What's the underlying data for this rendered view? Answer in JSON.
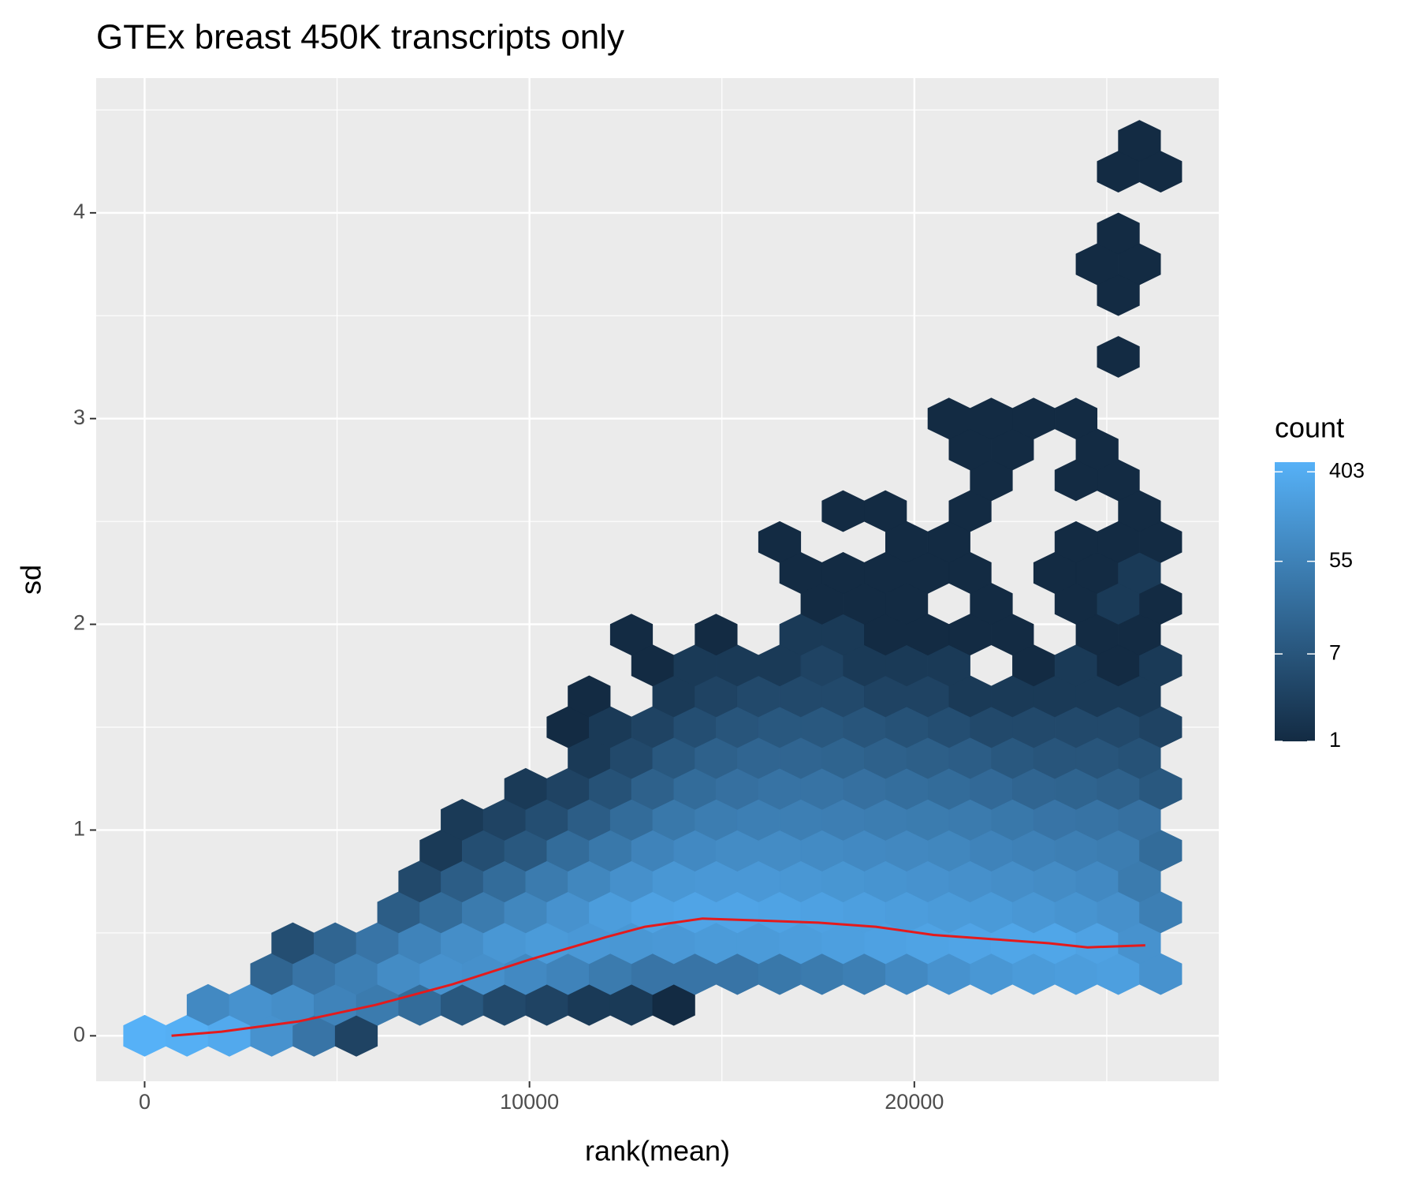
{
  "chart_data": {
    "type": "hexbin",
    "title": "GTEx breast 450K transcripts only",
    "x_label": "rank(mean)",
    "y_label": "sd",
    "xlim": [
      -1259,
      27910
    ],
    "ylim": [
      -0.221,
      4.655
    ],
    "xticks": [
      0,
      10000,
      20000
    ],
    "yticks": [
      0,
      1,
      2,
      3,
      4
    ],
    "grid": true,
    "background": "#EBEBEB",
    "legend": "right",
    "legend_title": "count",
    "legend_ticks": [
      1,
      7,
      55,
      403
    ],
    "log_color": true,
    "low_color": "#132B43",
    "high_color": "#56B1F7",
    "rows": [
      {
        "y": 0,
        "x": [
          0,
          1100,
          2200,
          3300,
          4400,
          5500
        ],
        "counts": [
          500,
          450,
          350,
          120,
          30,
          3
        ]
      },
      {
        "y": 0.15,
        "x": [
          1650,
          2750,
          3850,
          4950,
          6050,
          7150,
          8250,
          9350,
          10450,
          11550,
          12650,
          13750
        ],
        "counts": [
          80,
          120,
          100,
          60,
          40,
          20,
          8,
          4,
          3,
          2,
          2,
          1
        ]
      },
      {
        "y": 0.3,
        "x": [
          3300,
          4400,
          5500,
          6600,
          7700,
          8800,
          9900,
          11000,
          12100,
          13200,
          14300,
          15400,
          16500,
          17600,
          18700,
          19800,
          20900,
          22000,
          23100,
          24200,
          25300,
          26400
        ],
        "counts": [
          15,
          30,
          50,
          90,
          120,
          110,
          80,
          60,
          40,
          30,
          30,
          30,
          35,
          40,
          50,
          80,
          120,
          150,
          180,
          200,
          220,
          120
        ]
      },
      {
        "y": 0.45,
        "x": [
          3850,
          4950,
          6050,
          7150,
          8250,
          9350,
          10450,
          11550,
          12650,
          13750,
          14850,
          15950,
          17050,
          18150,
          19250,
          20350,
          21450,
          22550,
          23650,
          24750,
          25850
        ],
        "counts": [
          5,
          15,
          30,
          60,
          100,
          150,
          180,
          160,
          150,
          160,
          180,
          180,
          200,
          220,
          240,
          260,
          280,
          300,
          300,
          250,
          120
        ]
      },
      {
        "y": 0.6,
        "x": [
          6600,
          7700,
          8800,
          9900,
          11000,
          12100,
          13200,
          14300,
          15400,
          16500,
          17600,
          18700,
          19800,
          20900,
          22000,
          23100,
          24200,
          25300,
          26400
        ],
        "counts": [
          10,
          20,
          40,
          70,
          120,
          200,
          250,
          280,
          280,
          260,
          240,
          220,
          200,
          180,
          170,
          150,
          130,
          110,
          50
        ]
      },
      {
        "y": 0.75,
        "x": [
          7150,
          8250,
          9350,
          10450,
          11550,
          12650,
          13750,
          14850,
          15950,
          17050,
          18150,
          19250,
          20350,
          21450,
          22550,
          23650,
          24750,
          25850
        ],
        "counts": [
          4,
          10,
          20,
          40,
          70,
          110,
          150,
          160,
          160,
          150,
          140,
          130,
          120,
          110,
          100,
          90,
          80,
          40
        ]
      },
      {
        "y": 0.9,
        "x": [
          7700,
          8800,
          9900,
          11000,
          12100,
          13200,
          14300,
          15400,
          16500,
          17600,
          18700,
          19800,
          20900,
          22000,
          23100,
          24200,
          25300,
          26400
        ],
        "counts": [
          2,
          5,
          8,
          20,
          35,
          60,
          80,
          90,
          90,
          85,
          80,
          75,
          70,
          60,
          55,
          50,
          45,
          20
        ]
      },
      {
        "y": 1.05,
        "x": [
          8250,
          9350,
          10450,
          11550,
          12650,
          13750,
          14850,
          15950,
          17050,
          18150,
          19250,
          20350,
          21450,
          22550,
          23650,
          24750,
          25850
        ],
        "counts": [
          2,
          3,
          5,
          10,
          20,
          35,
          45,
          50,
          50,
          48,
          45,
          42,
          40,
          35,
          30,
          28,
          25
        ]
      },
      {
        "y": 1.2,
        "x": [
          9900,
          11000,
          12100,
          13200,
          14300,
          15400,
          16500,
          17600,
          18700,
          19800,
          20900,
          22000,
          23100,
          24200,
          25300,
          26400
        ],
        "counts": [
          2,
          3,
          6,
          12,
          20,
          25,
          28,
          28,
          25,
          22,
          20,
          18,
          15,
          14,
          12,
          8
        ]
      },
      {
        "y": 1.35,
        "x": [
          11550,
          12650,
          13750,
          14850,
          15950,
          17050,
          18150,
          19250,
          20350,
          21450,
          22550,
          23650,
          24750,
          25850
        ],
        "counts": [
          2,
          4,
          8,
          12,
          15,
          15,
          14,
          12,
          11,
          10,
          8,
          7,
          7,
          6
        ]
      },
      {
        "y": 1.5,
        "x": [
          11000,
          12100,
          13200,
          14300,
          15400,
          16500,
          17600,
          18700,
          19800,
          20900,
          22000,
          23100,
          24200,
          25300,
          26400
        ],
        "counts": [
          1,
          2,
          3,
          5,
          7,
          8,
          8,
          7,
          6,
          5,
          4,
          4,
          4,
          4,
          3
        ]
      },
      {
        "y": 1.65,
        "x": [
          11550,
          13750,
          14850,
          15950,
          17050,
          18150,
          19250,
          20350,
          21450,
          22550,
          23650,
          24750,
          25850
        ],
        "counts": [
          1,
          2,
          3,
          4,
          4,
          4,
          3,
          3,
          2,
          2,
          2,
          2,
          2
        ]
      },
      {
        "y": 1.8,
        "x": [
          13200,
          14300,
          15400,
          16500,
          17600,
          18700,
          19800,
          20900,
          23100,
          24200,
          25300,
          26400
        ],
        "counts": [
          1,
          2,
          2,
          2,
          3,
          2,
          2,
          2,
          1,
          2,
          1,
          2
        ]
      },
      {
        "y": 1.95,
        "x": [
          12650,
          14850,
          17050,
          18150,
          19250,
          20350,
          21450,
          22550,
          24750,
          25850
        ],
        "counts": [
          1,
          1,
          2,
          2,
          1,
          1,
          1,
          1,
          1,
          1
        ]
      },
      {
        "y": 2.1,
        "x": [
          17600,
          18700,
          19800,
          22000,
          24200,
          25300,
          26400
        ],
        "counts": [
          1,
          1,
          1,
          1,
          1,
          2,
          1
        ]
      },
      {
        "y": 2.25,
        "x": [
          17050,
          18150,
          19250,
          20350,
          21450,
          23650,
          24750,
          25850
        ],
        "counts": [
          1,
          1,
          1,
          1,
          1,
          1,
          1,
          2
        ]
      },
      {
        "y": 2.4,
        "x": [
          16500,
          19800,
          20900,
          24200,
          25300,
          26400
        ],
        "counts": [
          1,
          1,
          1,
          1,
          1,
          1
        ]
      },
      {
        "y": 2.55,
        "x": [
          18150,
          19250,
          21450,
          25850
        ],
        "counts": [
          1,
          1,
          1,
          1
        ]
      },
      {
        "y": 2.7,
        "x": [
          22000,
          24200,
          25300
        ],
        "counts": [
          1,
          1,
          1
        ]
      },
      {
        "y": 2.85,
        "x": [
          21450,
          22550,
          24750
        ],
        "counts": [
          1,
          1,
          1
        ]
      },
      {
        "y": 3.0,
        "x": [
          20900,
          22000,
          23100,
          24200
        ],
        "counts": [
          1,
          1,
          1,
          1
        ]
      },
      {
        "y": 3.3,
        "x": [
          25300
        ],
        "counts": [
          1
        ]
      },
      {
        "y": 3.6,
        "x": [
          25300
        ],
        "counts": [
          1
        ]
      },
      {
        "y": 3.75,
        "x": [
          24750,
          25850
        ],
        "counts": [
          1,
          1
        ]
      },
      {
        "y": 3.9,
        "x": [
          25300
        ],
        "counts": [
          1
        ]
      },
      {
        "y": 4.2,
        "x": [
          25300,
          26400
        ],
        "counts": [
          1,
          1
        ]
      },
      {
        "y": 4.35,
        "x": [
          25850
        ],
        "counts": [
          1
        ]
      }
    ],
    "smooth": {
      "color": "#E41A1C",
      "x": [
        700,
        2000,
        4000,
        6000,
        8000,
        10000,
        12000,
        13000,
        14500,
        16000,
        17500,
        19000,
        20500,
        22000,
        23500,
        24500,
        26000
      ],
      "y": [
        0,
        0.02,
        0.07,
        0.15,
        0.25,
        0.37,
        0.48,
        0.53,
        0.57,
        0.56,
        0.55,
        0.53,
        0.49,
        0.47,
        0.45,
        0.43,
        0.44
      ]
    }
  }
}
